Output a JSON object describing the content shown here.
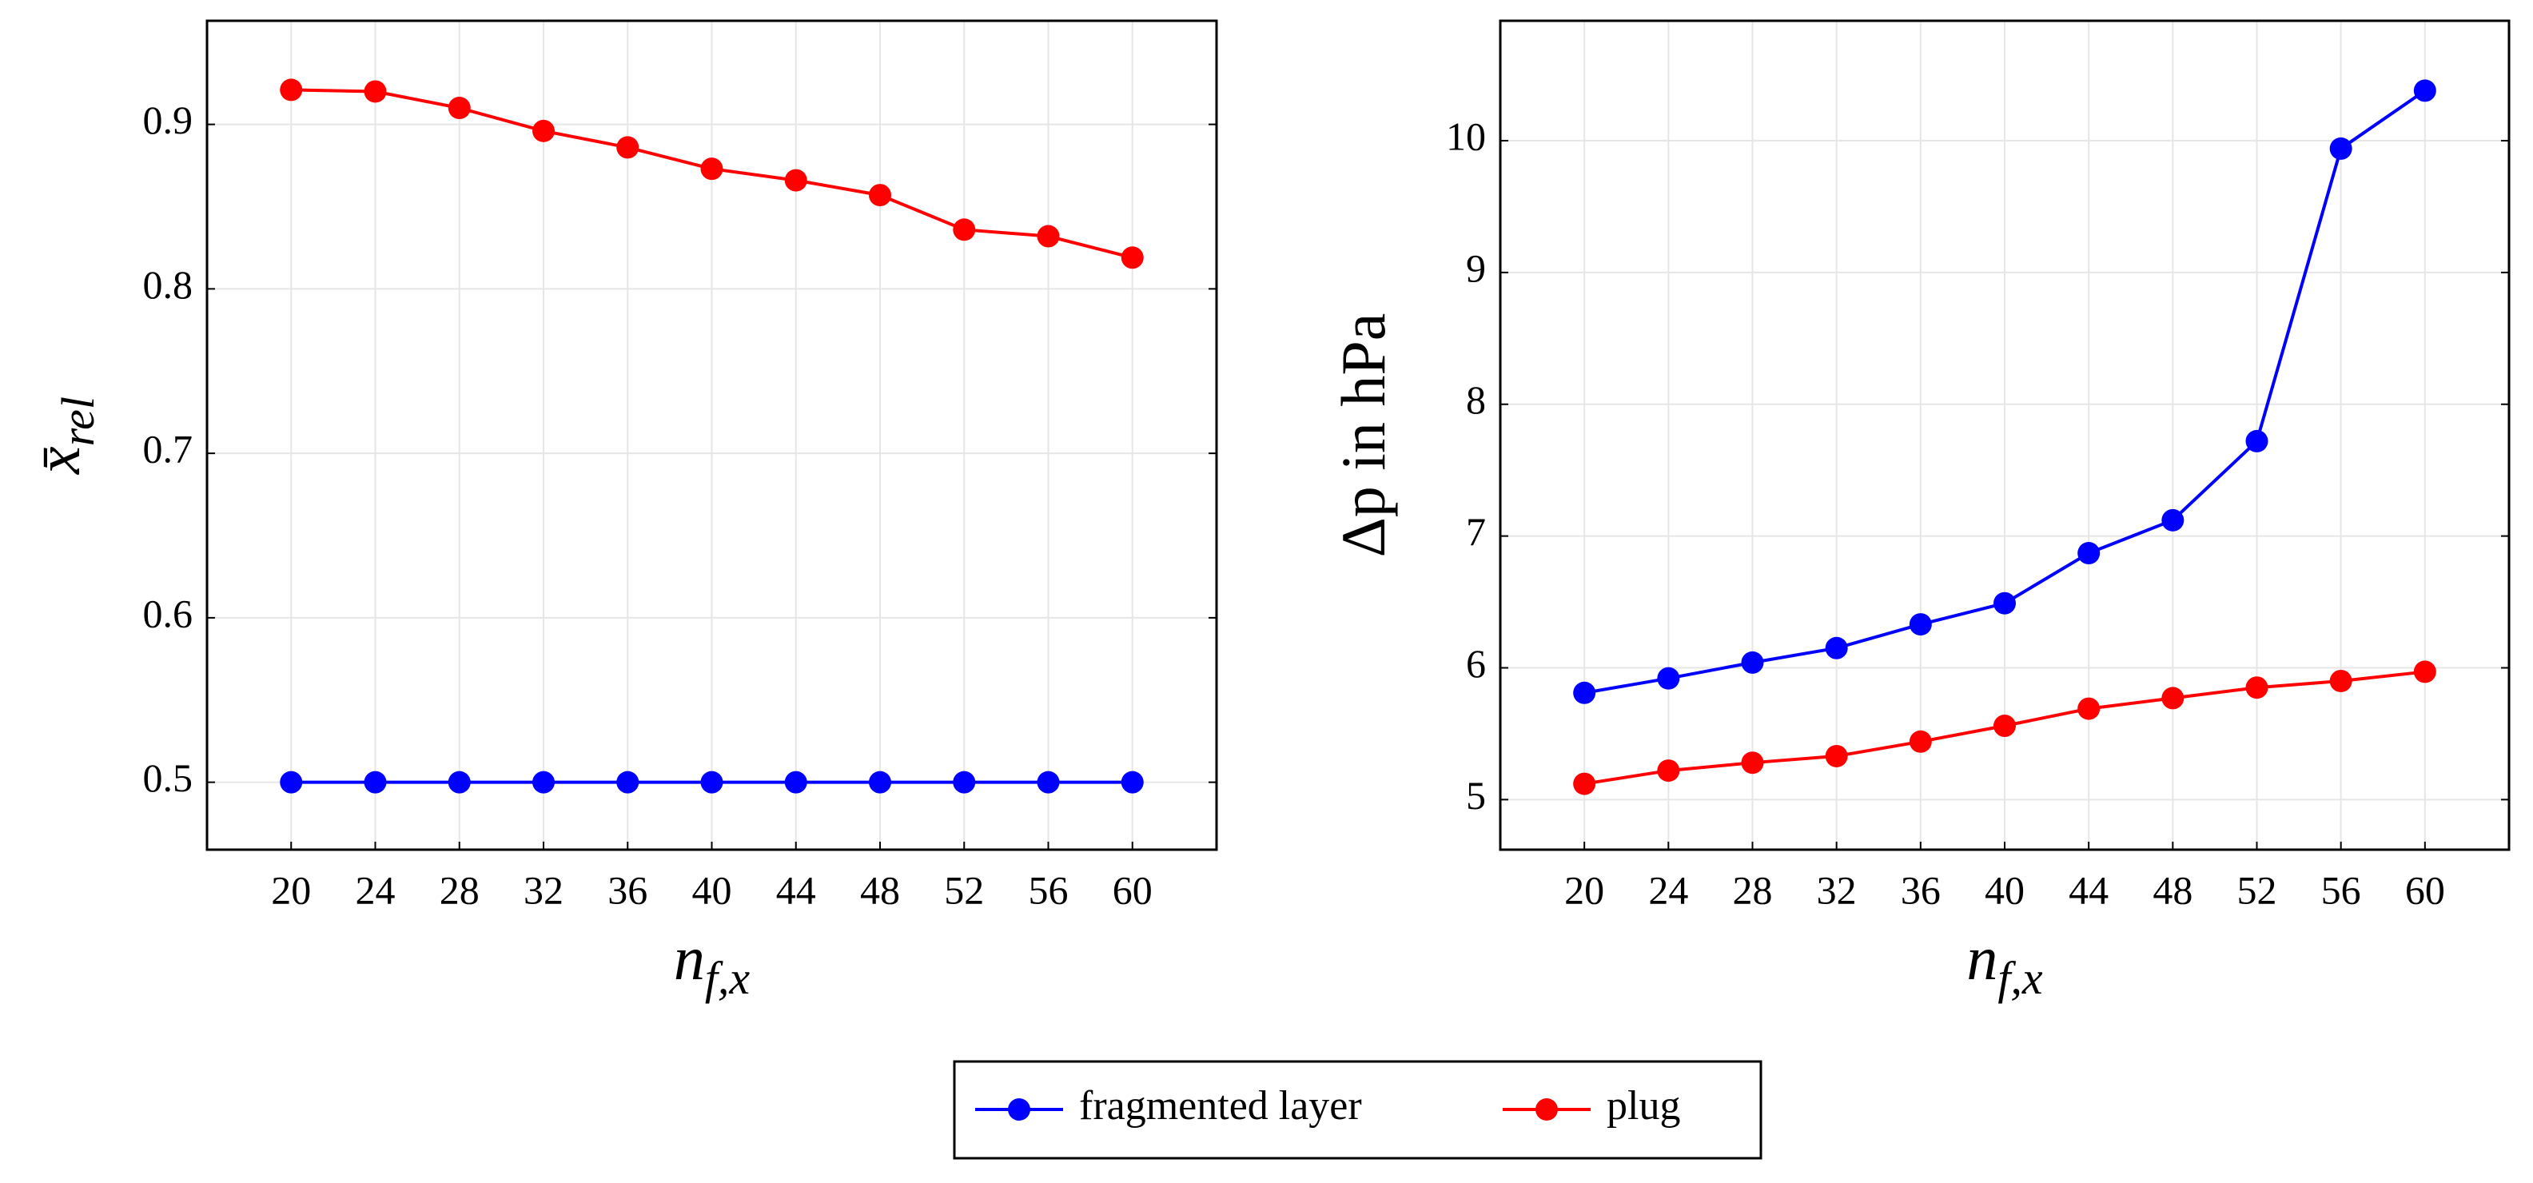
{
  "chart_data": [
    {
      "type": "line",
      "xlabel": {
        "text": "n",
        "subscript": "f,x"
      },
      "ylabel": {
        "text": "x̄",
        "subscript": "rel"
      },
      "x": [
        20,
        24,
        28,
        32,
        36,
        40,
        44,
        48,
        52,
        56,
        60
      ],
      "series": [
        {
          "color": "#0000ff",
          "values": [
            0.5,
            0.5,
            0.5,
            0.5,
            0.5,
            0.5,
            0.5,
            0.5,
            0.5,
            0.5,
            0.5
          ]
        },
        {
          "color": "#ff0000",
          "values": [
            0.921,
            0.92,
            0.91,
            0.896,
            0.886,
            0.873,
            0.866,
            0.857,
            0.836,
            0.832,
            0.819
          ]
        }
      ],
      "xlim": [
        16,
        64
      ],
      "xticks": [
        20,
        24,
        28,
        32,
        36,
        40,
        44,
        48,
        52,
        56,
        60
      ],
      "ylim": [
        0.459,
        0.963
      ],
      "yticks": [
        0.5,
        0.6,
        0.7,
        0.8,
        0.9
      ],
      "grid": true
    },
    {
      "type": "line",
      "xlabel": {
        "text": "n",
        "subscript": "f,x"
      },
      "ylabel": {
        "text": "Δp in hPa"
      },
      "x": [
        20,
        24,
        28,
        32,
        36,
        40,
        44,
        48,
        52,
        56,
        60
      ],
      "series": [
        {
          "color": "#0000ff",
          "values": [
            5.81,
            5.92,
            6.04,
            6.15,
            6.33,
            6.49,
            6.87,
            7.12,
            7.72,
            9.94,
            10.38
          ]
        },
        {
          "color": "#ff0000",
          "values": [
            5.12,
            5.22,
            5.28,
            5.33,
            5.44,
            5.56,
            5.69,
            5.77,
            5.85,
            5.9,
            5.97
          ]
        }
      ],
      "xlim": [
        16,
        64
      ],
      "xticks": [
        20,
        24,
        28,
        32,
        36,
        40,
        44,
        48,
        52,
        56,
        60
      ],
      "ylim": [
        4.62,
        10.91
      ],
      "yticks": [
        5,
        6,
        7,
        8,
        9,
        10
      ],
      "grid": true
    }
  ],
  "legend": [
    {
      "name": "fragmented layer",
      "color": "#0000ff"
    },
    {
      "name": "plug",
      "color": "#ff0000"
    }
  ]
}
